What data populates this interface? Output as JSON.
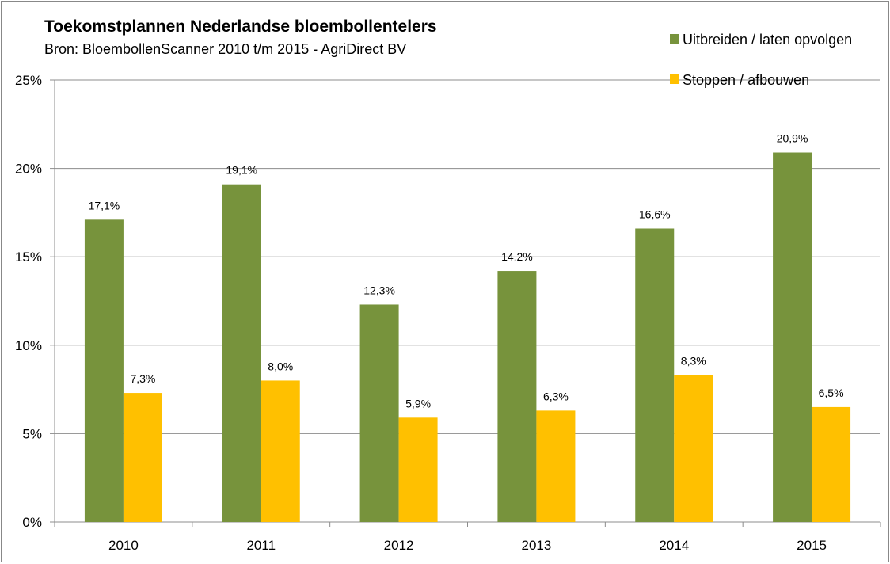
{
  "chart_data": {
    "type": "bar",
    "title": "Toekomstplannen Nederlandse bloembollentelers",
    "subtitle": "Bron: BloembollenScanner 2010 t/m 2015 - AgriDirect BV",
    "categories": [
      "2010",
      "2011",
      "2012",
      "2013",
      "2014",
      "2015"
    ],
    "series": [
      {
        "name": "Uitbreiden / laten opvolgen",
        "color": "#77933c",
        "values": [
          17.1,
          19.1,
          12.3,
          14.2,
          16.6,
          20.9
        ],
        "labels": [
          "17,1%",
          "19,1%",
          "12,3%",
          "14,2%",
          "16,6%",
          "20,9%"
        ]
      },
      {
        "name": "Stoppen / afbouwen",
        "color": "#ffc000",
        "values": [
          7.3,
          8.0,
          5.9,
          6.3,
          8.3,
          6.5
        ],
        "labels": [
          "7,3%",
          "8,0%",
          "5,9%",
          "6,3%",
          "8,3%",
          "6,5%"
        ]
      }
    ],
    "ylim": [
      0,
      25
    ],
    "yticks": [
      0,
      5,
      10,
      15,
      20,
      25
    ],
    "ytick_labels": [
      "0%",
      "5%",
      "10%",
      "15%",
      "20%",
      "25%"
    ],
    "xlabel": "",
    "ylabel": "",
    "grid": true,
    "legend_position": "top-right"
  }
}
